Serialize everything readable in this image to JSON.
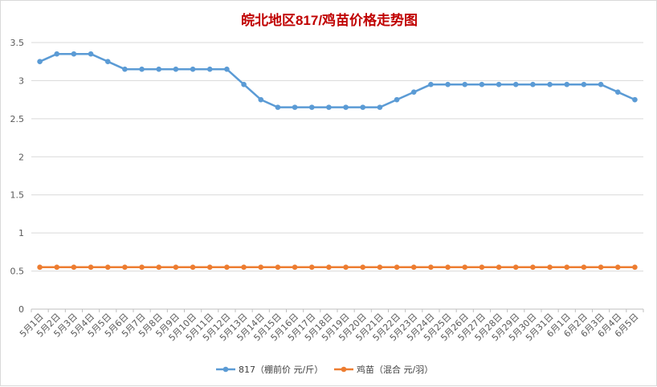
{
  "chart_data": {
    "type": "line",
    "title": "皖北地区817/鸡苗价格走势图",
    "categories": [
      "5月1日",
      "5月2日",
      "5月3日",
      "5月4日",
      "5月5日",
      "5月6日",
      "5月7日",
      "5月8日",
      "5月9日",
      "5月10日",
      "5月11日",
      "5月12日",
      "5月13日",
      "5月14日",
      "5月15日",
      "5月16日",
      "5月17日",
      "5月18日",
      "5月19日",
      "5月20日",
      "5月21日",
      "5月22日",
      "5月23日",
      "5月24日",
      "5月25日",
      "5月26日",
      "5月27日",
      "5月28日",
      "5月29日",
      "5月30日",
      "5月31日",
      "6月1日",
      "6月2日",
      "6月3日",
      "6月4日",
      "6月5日"
    ],
    "series": [
      {
        "name": "817（棚前价 元/斤）",
        "color": "#5b9bd5",
        "values": [
          3.25,
          3.35,
          3.35,
          3.35,
          3.25,
          3.15,
          3.15,
          3.15,
          3.15,
          3.15,
          3.15,
          3.15,
          2.95,
          2.75,
          2.65,
          2.65,
          2.65,
          2.65,
          2.65,
          2.65,
          2.65,
          2.75,
          2.85,
          2.95,
          2.95,
          2.95,
          2.95,
          2.95,
          2.95,
          2.95,
          2.95,
          2.95,
          2.95,
          2.95,
          2.85,
          2.75
        ]
      },
      {
        "name": "鸡苗（混合 元/羽）",
        "color": "#ed7d31",
        "values": [
          0.55,
          0.55,
          0.55,
          0.55,
          0.55,
          0.55,
          0.55,
          0.55,
          0.55,
          0.55,
          0.55,
          0.55,
          0.55,
          0.55,
          0.55,
          0.55,
          0.55,
          0.55,
          0.55,
          0.55,
          0.55,
          0.55,
          0.55,
          0.55,
          0.55,
          0.55,
          0.55,
          0.55,
          0.55,
          0.55,
          0.55,
          0.55,
          0.55,
          0.55,
          0.55,
          0.55
        ]
      }
    ],
    "ylim": [
      0,
      3.5
    ],
    "yticks": [
      "0",
      "0.5",
      "1",
      "1.5",
      "2",
      "2.5",
      "3",
      "3.5"
    ],
    "grid": true,
    "legend_position": "bottom",
    "gridline_color": "#d9d9d9"
  }
}
